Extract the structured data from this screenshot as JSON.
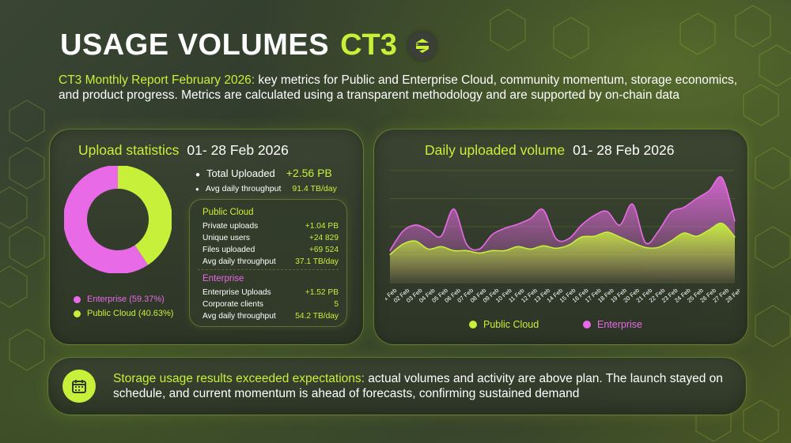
{
  "header": {
    "title": "USAGE VOLUMES",
    "accent": "CT3",
    "logo_icon": "ct3-logo-icon"
  },
  "intro": {
    "highlight": "CT3 Monthly Report February 2026:",
    "text": " key metrics for Public and Enterprise Cloud, community momentum, storage economics, and product progress. Metrics are calculated using a transparent methodology and are supported by on-chain data"
  },
  "upload": {
    "title": "Upload statistics",
    "date": "01- 28 Feb 2026",
    "total_label": "Total Uploaded",
    "total_value": "+2.56 PB",
    "avg_label": "Avg daily throughput",
    "avg_value": "91.4 TB/day",
    "legend": [
      {
        "label": "Enterprise (59.37%)",
        "color": "#e96ae6"
      },
      {
        "label": "Public  Cloud (40.63%)",
        "color": "#c6f03a"
      }
    ],
    "donut": {
      "enterprise": 59.37,
      "public": 40.63
    },
    "public": {
      "title": "Public  Cloud",
      "rows": [
        {
          "label": "Private uploads",
          "value": "+1.04 PB"
        },
        {
          "label": "Unique users",
          "value": "+24 829"
        },
        {
          "label": "Files uploaded",
          "value": "+69 524"
        },
        {
          "label": "Avg daily throughput",
          "value": "37.1 TB/day"
        }
      ]
    },
    "enterprise": {
      "title": "Enterprise",
      "rows": [
        {
          "label": "Enterprise Uploads",
          "value": "+1.52 PB"
        },
        {
          "label": "Corporate clients",
          "value": "5"
        },
        {
          "label": "Avg daily throughput",
          "value": "54.2 TB/day"
        }
      ]
    }
  },
  "daily": {
    "title": "Daily uploaded volume",
    "date": "01- 28 Feb 2026",
    "legend_public": "Public  Cloud",
    "legend_enterprise": "Enterprise"
  },
  "chart_data": {
    "type": "area",
    "title": "Daily uploaded volume",
    "x": [
      "01 Feb",
      "02 Feb",
      "03 Feb",
      "04 Feb",
      "05 Feb",
      "06 Feb",
      "07 Feb",
      "08 Feb",
      "09 Feb",
      "10 Feb",
      "11 Feb",
      "12 Feb",
      "13 Feb",
      "14 Feb",
      "15 Feb",
      "16 Feb",
      "17 Feb",
      "18 Feb",
      "19 Feb",
      "20 Feb",
      "21 Feb",
      "22 Feb",
      "23 Feb",
      "24 Feb",
      "25 Feb",
      "26 Feb",
      "27 Feb",
      "28 Feb"
    ],
    "series": [
      {
        "name": "Public  Cloud",
        "color": "#c6f03a",
        "values": [
          0.35,
          0.48,
          0.52,
          0.42,
          0.45,
          0.4,
          0.4,
          0.37,
          0.4,
          0.4,
          0.45,
          0.42,
          0.46,
          0.43,
          0.47,
          0.57,
          0.58,
          0.63,
          0.57,
          0.5,
          0.44,
          0.44,
          0.52,
          0.62,
          0.58,
          0.66,
          0.74,
          0.57
        ]
      },
      {
        "name": "Enterprise",
        "color": "#e96ae6",
        "values": [
          0.4,
          0.64,
          0.72,
          0.66,
          0.58,
          0.92,
          0.48,
          0.42,
          0.6,
          0.68,
          0.73,
          0.8,
          0.91,
          0.55,
          0.55,
          0.72,
          0.84,
          0.89,
          0.72,
          0.98,
          0.5,
          0.64,
          0.88,
          0.94,
          1.05,
          1.15,
          1.31,
          0.77
        ]
      }
    ],
    "ylim": [
      0,
      1.4
    ],
    "grid": true,
    "legend_position": "bottom"
  },
  "bottom": {
    "icon": "calendar-icon",
    "highlight": "Storage usage results exceeded expectations:",
    "text": " actual volumes and activity are above plan. The launch stayed on schedule, and current momentum is ahead of forecasts, confirming sustained demand"
  }
}
